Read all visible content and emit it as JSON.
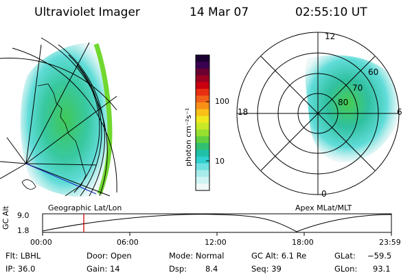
{
  "header": {
    "instrument": "Ultraviolet Imager",
    "date": "14 Mar 07",
    "time": "02:55:10 UT"
  },
  "left_panel": {
    "label": "Geographic Lat/Lon"
  },
  "right_panel": {
    "label": "Apex MLat/MLT",
    "clock_labels": [
      "12",
      "18",
      "6",
      "0"
    ],
    "lat_labels": [
      "60",
      "70",
      "80"
    ]
  },
  "colorbar": {
    "unit": "photon cm⁻²s⁻¹",
    "ticks": [
      "100",
      "10"
    ],
    "colors": [
      "#1a0030",
      "#3a0050",
      "#6a0030",
      "#9a0020",
      "#c80010",
      "#e83010",
      "#f06018",
      "#f89018",
      "#f8c018",
      "#f0e820",
      "#c8e828",
      "#98e030",
      "#60d040",
      "#30c070",
      "#20c0a8",
      "#30d0d0",
      "#70e0e0",
      "#a8ecec",
      "#d0f4f4",
      "#f0f8f8"
    ]
  },
  "timeline": {
    "ylabel": "GC Alt",
    "y_ticks": [
      "9.0",
      "1.8"
    ],
    "x_ticks": [
      "00:00",
      "06:00",
      "12:00",
      "18:00",
      "23:59"
    ],
    "marker_color": "#d00000"
  },
  "info": {
    "flt": "Flt: LBHL",
    "ip": "IP: 36.0",
    "door": "Door: Open",
    "gain": "Gain: 14",
    "mode": "Mode: Normal",
    "dsp_label": "Dsp:",
    "dsp_value": "8.4",
    "gc_alt": "GC Alt: 6.1 Re",
    "seq": "Seq: 39",
    "glat_label": "GLat:",
    "glat_value": "−59.5",
    "glon_label": "GLon:",
    "glon_value": "93.1"
  }
}
